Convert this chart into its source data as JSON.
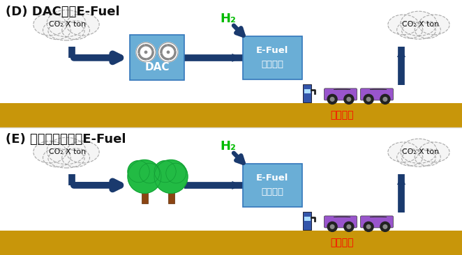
{
  "title_D": "(D) DAC利用E-Fuel",
  "title_E": "(E) バイオマス利用E-Fuel",
  "co2_label": "CO₂ X ton",
  "h2_label": "H₂",
  "transport_label": "運輸部門",
  "dac_label": "DAC",
  "bg_color": "#ffffff",
  "ground_color": "#c8960a",
  "arrow_color": "#1a3a6e",
  "box_color": "#6aaed6",
  "h2_color": "#00bb00",
  "transport_color": "#ff0000",
  "cloud_fill": "#f5f5f5",
  "cloud_edge": "#aaaaaa",
  "car_color": "#9955cc",
  "tree_green": "#22bb44",
  "tree_trunk": "#8B4513"
}
